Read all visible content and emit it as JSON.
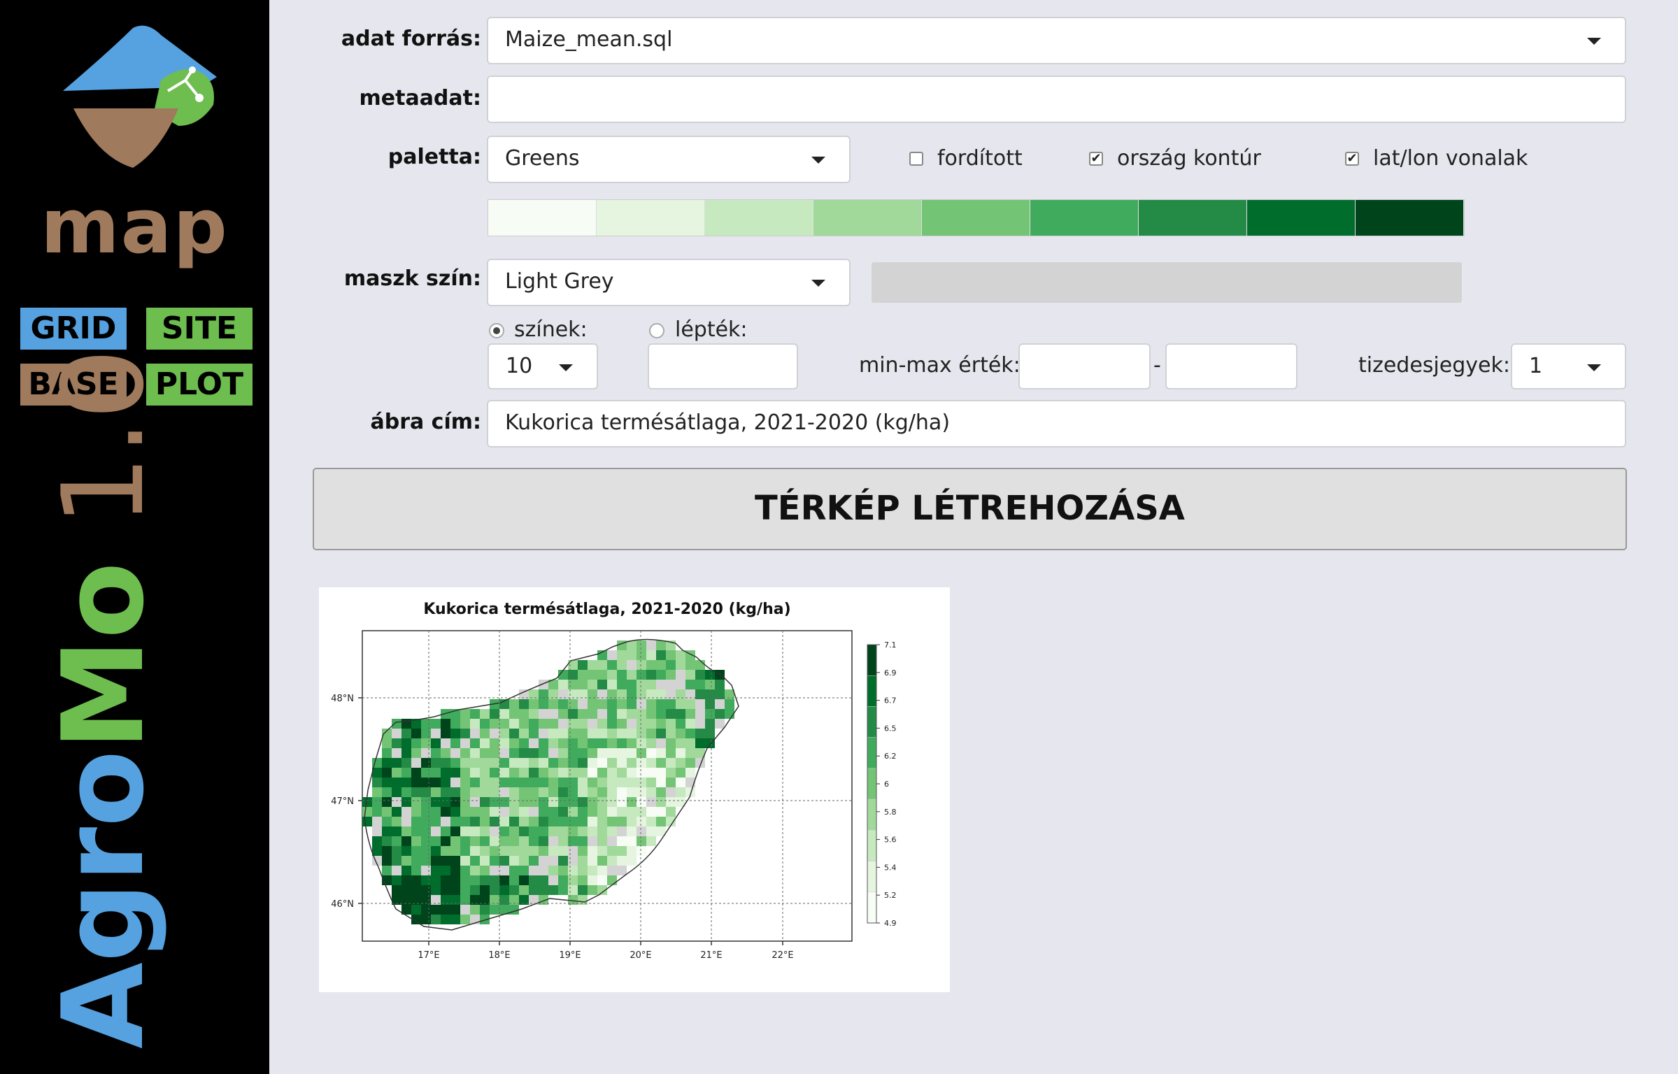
{
  "sidebar": {
    "logo_word": "map",
    "nav": {
      "grid": "GRID",
      "site": "SITE",
      "base": "BASE",
      "plot": "PLOT"
    },
    "brand": {
      "part1": "Agro",
      "part2": "Mo",
      "version": " 1.0"
    },
    "colors": {
      "blue": "#56a2e0",
      "green": "#6ebd4f",
      "brown": "#a07a5c"
    }
  },
  "form": {
    "source_label": "adat forrás:",
    "source_value": "Maize_mean.sql",
    "metadata_label": "metaadat:",
    "metadata_value": "",
    "palette_label": "paletta:",
    "palette_value": "Greens",
    "reversed_label": "fordított",
    "reversed_checked": false,
    "country_label": "ország kontúr",
    "country_checked": true,
    "latlon_label": "lat/lon vonalak",
    "latlon_checked": true,
    "palette_colors": [
      "#f7fcf5",
      "#e5f5e0",
      "#c7e9c0",
      "#a1d99b",
      "#74c476",
      "#41ab5d",
      "#238b45",
      "#006d2c",
      "#00441b"
    ],
    "mask_label": "maszk szín:",
    "mask_value": "Light Grey",
    "mask_color": "#d3d3d3",
    "colors_radio_label": "színek:",
    "scale_radio_label": "lépték:",
    "colors_count": "10",
    "scale_value": "",
    "minmax_label": "min-max érték:",
    "min_value": "",
    "dash": "-",
    "max_value": "",
    "decimals_label": "tizedesjegyek:",
    "decimals_value": "1",
    "title_label": "ábra cím:",
    "title_value": "Kukorica termésátlaga, 2021-2020 (kg/ha)"
  },
  "button": {
    "run_label": "TÉRKÉP LÉTREHOZÁSA"
  },
  "map": {
    "title": "Kukorica termésátlaga, 2021-2020 (kg/ha)",
    "lat_labels": [
      "48°N",
      "47°N",
      "46°N"
    ],
    "lon_labels": [
      "17°E",
      "18°E",
      "19°E",
      "20°E",
      "21°E",
      "22°E"
    ],
    "legend_values": [
      "7.1",
      "6.9",
      "6.7",
      "6.5",
      "6.2",
      "6",
      "5.8",
      "5.6",
      "5.4",
      "5.2",
      "4.9"
    ]
  }
}
